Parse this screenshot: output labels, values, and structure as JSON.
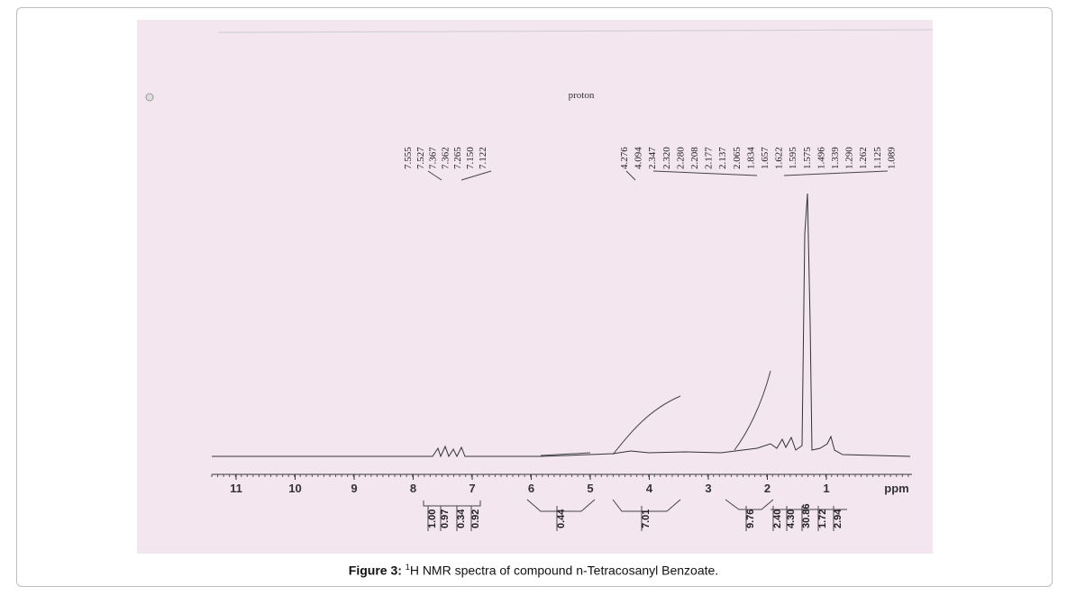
{
  "figure": {
    "title": "proton",
    "peaks_aromatic": [
      "7.555",
      "7.527",
      "7.367",
      "7.362",
      "7.265",
      "7.150",
      "7.122"
    ],
    "peaks_aliphatic": [
      "4.276",
      "4.094",
      "2.347",
      "2.320",
      "2.280",
      "2.208",
      "2.177",
      "2.137",
      "2.065",
      "1.834",
      "1.657",
      "1.622",
      "1.595",
      "1.575",
      "1.496",
      "1.339",
      "1.290",
      "1.262",
      "1.125",
      "1.089"
    ],
    "axis": {
      "ticks": [
        "11",
        "10",
        "9",
        "8",
        "7",
        "6",
        "5",
        "4",
        "3",
        "2",
        "1"
      ],
      "unit": "ppm"
    },
    "integrals": [
      "1.00",
      "0.97",
      "0.34",
      "0.92",
      "0.44",
      "7.01",
      "9.76",
      "2.40",
      "4.30",
      "30.86",
      "1.72",
      "2.94"
    ]
  },
  "caption": {
    "label": "Figure 3:",
    "sup": "1",
    "text": "H NMR spectra of compound n-Tetracosanyl Benzoate."
  }
}
